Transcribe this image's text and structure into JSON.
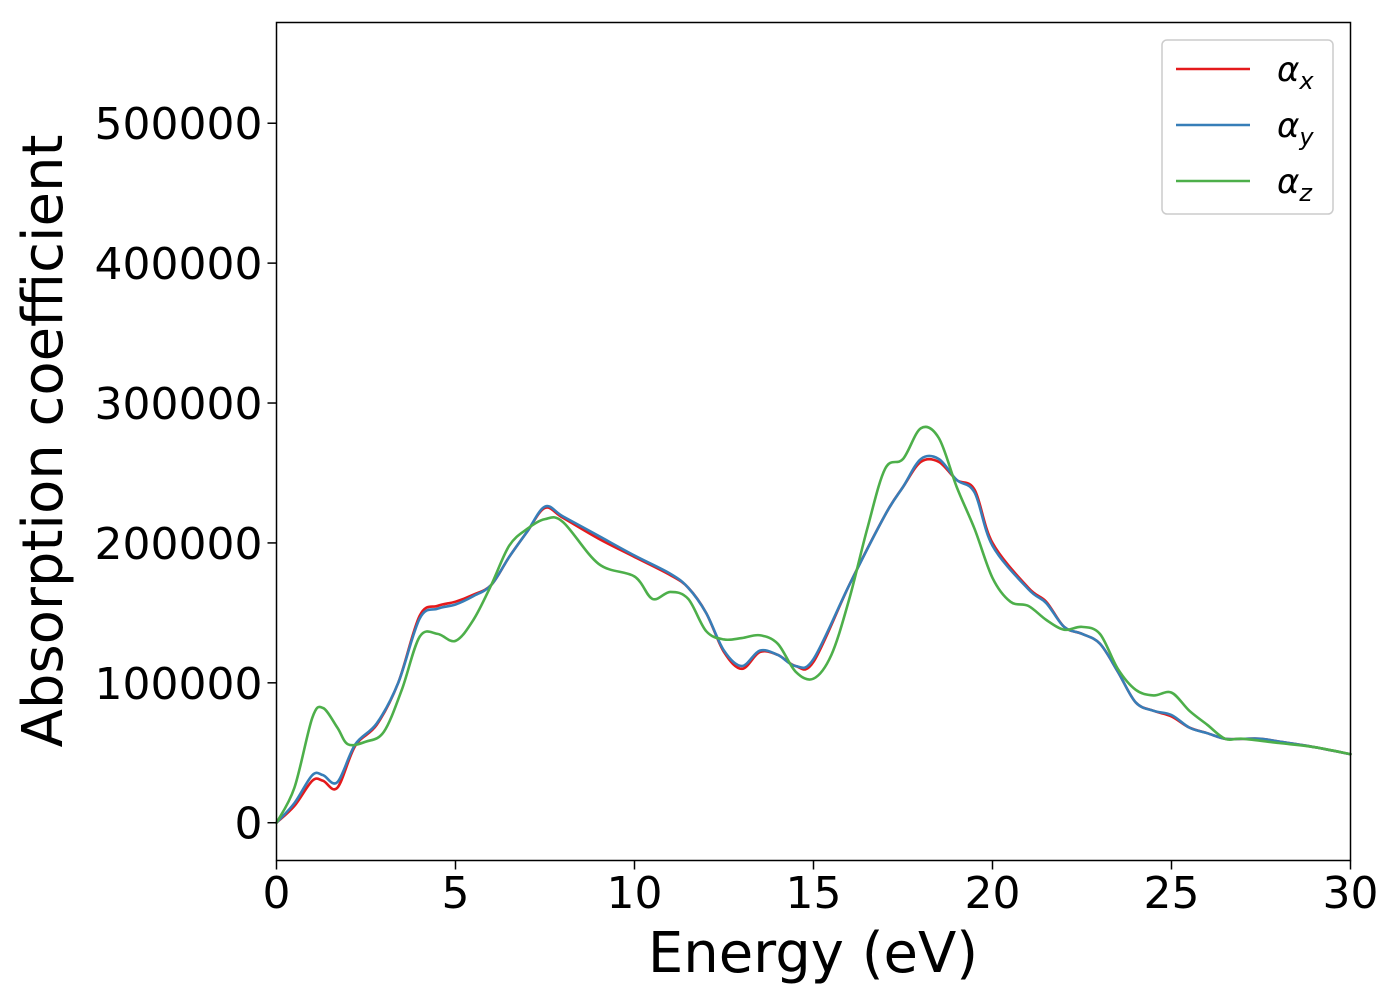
{
  "chart_data": {
    "type": "line",
    "title": "",
    "xlabel": "Energy (eV)",
    "ylabel": "Absorption coefficient",
    "xlim": [
      0,
      30
    ],
    "ylim": [
      -27000,
      572000
    ],
    "x_ticks": [
      0,
      5,
      10,
      15,
      20,
      25,
      30
    ],
    "y_ticks": [
      0,
      100000,
      200000,
      300000,
      400000,
      500000
    ],
    "grid": false,
    "legend_position": "top-right",
    "series": [
      {
        "name": "α_x",
        "legend_main": "α",
        "legend_sub": "x",
        "color": "#e41a1c",
        "x": [
          0,
          0.5,
          1.0,
          1.3,
          1.7,
          2.2,
          2.8,
          3.4,
          4.0,
          4.5,
          5.0,
          5.5,
          6.0,
          6.5,
          7.0,
          7.5,
          8.0,
          9.0,
          10.0,
          11.0,
          11.5,
          12.0,
          12.5,
          13.0,
          13.5,
          14.0,
          14.5,
          15.0,
          16.0,
          17.0,
          17.5,
          18.0,
          18.5,
          19.0,
          19.5,
          20.0,
          21.0,
          21.5,
          22.0,
          22.5,
          23.0,
          23.5,
          24.0,
          24.5,
          25.0,
          25.5,
          26.0,
          26.5,
          27.0,
          27.5,
          28.0,
          29.0,
          30.0
        ],
        "values": [
          0,
          12000,
          30000,
          30000,
          25000,
          55000,
          70000,
          100000,
          148000,
          155000,
          158000,
          163000,
          170000,
          190000,
          208000,
          225000,
          218000,
          203000,
          190000,
          177000,
          168000,
          150000,
          122000,
          110000,
          122000,
          120000,
          112000,
          115000,
          170000,
          220000,
          240000,
          258000,
          258000,
          245000,
          238000,
          200000,
          168000,
          158000,
          140000,
          135000,
          128000,
          108000,
          86000,
          80000,
          76000,
          68000,
          64000,
          60000,
          60000,
          60000,
          58000,
          54000,
          49000
        ]
      },
      {
        "name": "α_y",
        "legend_main": "α",
        "legend_sub": "y",
        "color": "#377eb8",
        "x": [
          0,
          0.5,
          1.0,
          1.3,
          1.7,
          2.2,
          2.8,
          3.4,
          4.0,
          4.5,
          5.0,
          5.5,
          6.0,
          6.5,
          7.0,
          7.5,
          8.0,
          9.0,
          10.0,
          11.0,
          11.5,
          12.0,
          12.5,
          13.0,
          13.5,
          14.0,
          14.5,
          15.0,
          16.0,
          17.0,
          17.5,
          18.0,
          18.5,
          19.0,
          19.5,
          20.0,
          21.0,
          21.5,
          22.0,
          22.5,
          23.0,
          23.5,
          24.0,
          24.5,
          25.0,
          25.5,
          26.0,
          26.5,
          27.0,
          27.5,
          28.0,
          29.0,
          30.0
        ],
        "values": [
          0,
          14000,
          34000,
          34000,
          29000,
          56000,
          71000,
          100000,
          146000,
          153000,
          156000,
          162000,
          170000,
          190000,
          208000,
          226000,
          219000,
          205000,
          191000,
          178000,
          168000,
          150000,
          123000,
          112000,
          123000,
          120000,
          112000,
          117000,
          170000,
          220000,
          240000,
          260000,
          260000,
          245000,
          236000,
          198000,
          167000,
          157000,
          140000,
          135000,
          128000,
          108000,
          86000,
          80000,
          77000,
          68000,
          64000,
          60000,
          60000,
          60000,
          58000,
          54000,
          49000
        ]
      },
      {
        "name": "α_z",
        "legend_main": "α",
        "legend_sub": "z",
        "color": "#4daf4a",
        "x": [
          0,
          0.5,
          1.0,
          1.3,
          1.7,
          2.0,
          2.5,
          3.0,
          3.5,
          4.0,
          4.5,
          5.0,
          5.5,
          6.0,
          6.5,
          7.0,
          7.5,
          8.0,
          9.0,
          10.0,
          10.5,
          11.0,
          11.5,
          12.0,
          12.5,
          13.0,
          13.5,
          14.0,
          14.5,
          15.0,
          15.5,
          16.0,
          16.5,
          17.0,
          17.5,
          18.0,
          18.5,
          19.0,
          19.5,
          20.0,
          20.5,
          21.0,
          21.5,
          22.0,
          22.5,
          23.0,
          23.5,
          24.0,
          24.5,
          25.0,
          25.5,
          26.0,
          26.5,
          27.0,
          28.0,
          29.0,
          30.0
        ],
        "values": [
          0,
          25000,
          75000,
          82000,
          68000,
          56000,
          58000,
          65000,
          95000,
          133000,
          135000,
          130000,
          145000,
          170000,
          198000,
          210000,
          217000,
          215000,
          185000,
          176000,
          160000,
          165000,
          160000,
          137000,
          131000,
          132000,
          134000,
          128000,
          108000,
          103000,
          120000,
          160000,
          210000,
          253000,
          260000,
          282000,
          275000,
          240000,
          210000,
          175000,
          158000,
          155000,
          145000,
          138000,
          140000,
          135000,
          110000,
          95000,
          91000,
          93000,
          80000,
          70000,
          60000,
          60000,
          57000,
          54000,
          49000
        ]
      }
    ]
  }
}
